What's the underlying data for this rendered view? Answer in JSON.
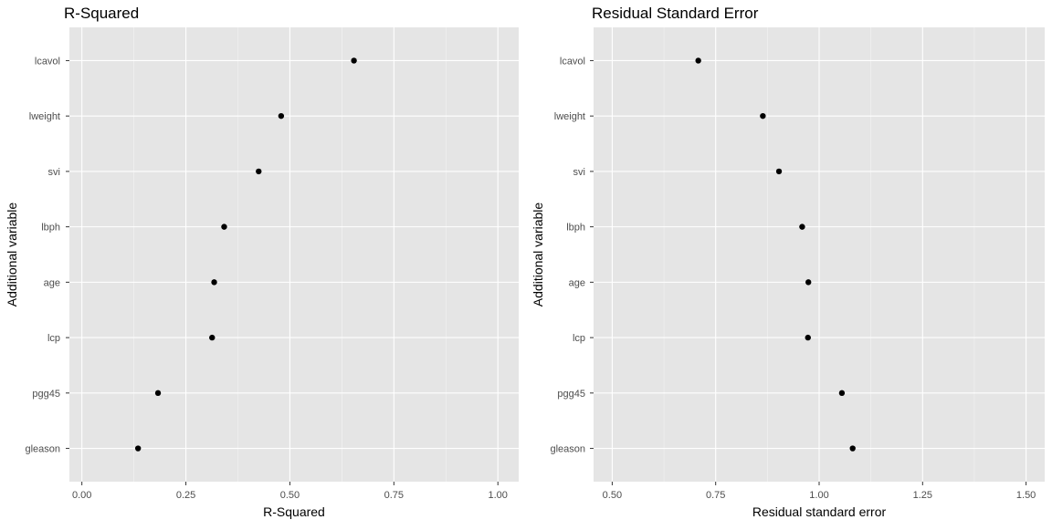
{
  "chart_data": [
    {
      "type": "scatter",
      "title": "R-Squared",
      "xlabel": "R-Squared",
      "ylabel": "Additional variable",
      "xlim": [
        -0.03,
        1.05
      ],
      "xticks": [
        0.0,
        0.25,
        0.5,
        0.75,
        1.0
      ],
      "xtick_labels": [
        "0.00",
        "0.25",
        "0.50",
        "0.75",
        "1.00"
      ],
      "categories": [
        "lcavol",
        "lweight",
        "svi",
        "lbph",
        "age",
        "lcp",
        "pgg45",
        "gleason"
      ],
      "values": [
        0.654,
        0.479,
        0.425,
        0.342,
        0.318,
        0.313,
        0.183,
        0.135
      ],
      "grid": true
    },
    {
      "type": "scatter",
      "title": "Residual Standard Error",
      "xlabel": "Residual standard error",
      "ylabel": "Additional variable",
      "xlim": [
        0.455,
        1.545
      ],
      "xticks": [
        0.5,
        0.75,
        1.0,
        1.25,
        1.5
      ],
      "xtick_labels": [
        "0.50",
        "0.75",
        "1.00",
        "1.25",
        "1.50"
      ],
      "categories": [
        "lcavol",
        "lweight",
        "svi",
        "lbph",
        "age",
        "lcp",
        "pgg45",
        "gleason"
      ],
      "values": [
        0.708,
        0.864,
        0.903,
        0.959,
        0.974,
        0.973,
        1.055,
        1.081
      ],
      "grid": true
    }
  ],
  "colors": {
    "panel_background": "#e5e5e5",
    "grid_major": "#ffffff",
    "point": "#000000"
  }
}
